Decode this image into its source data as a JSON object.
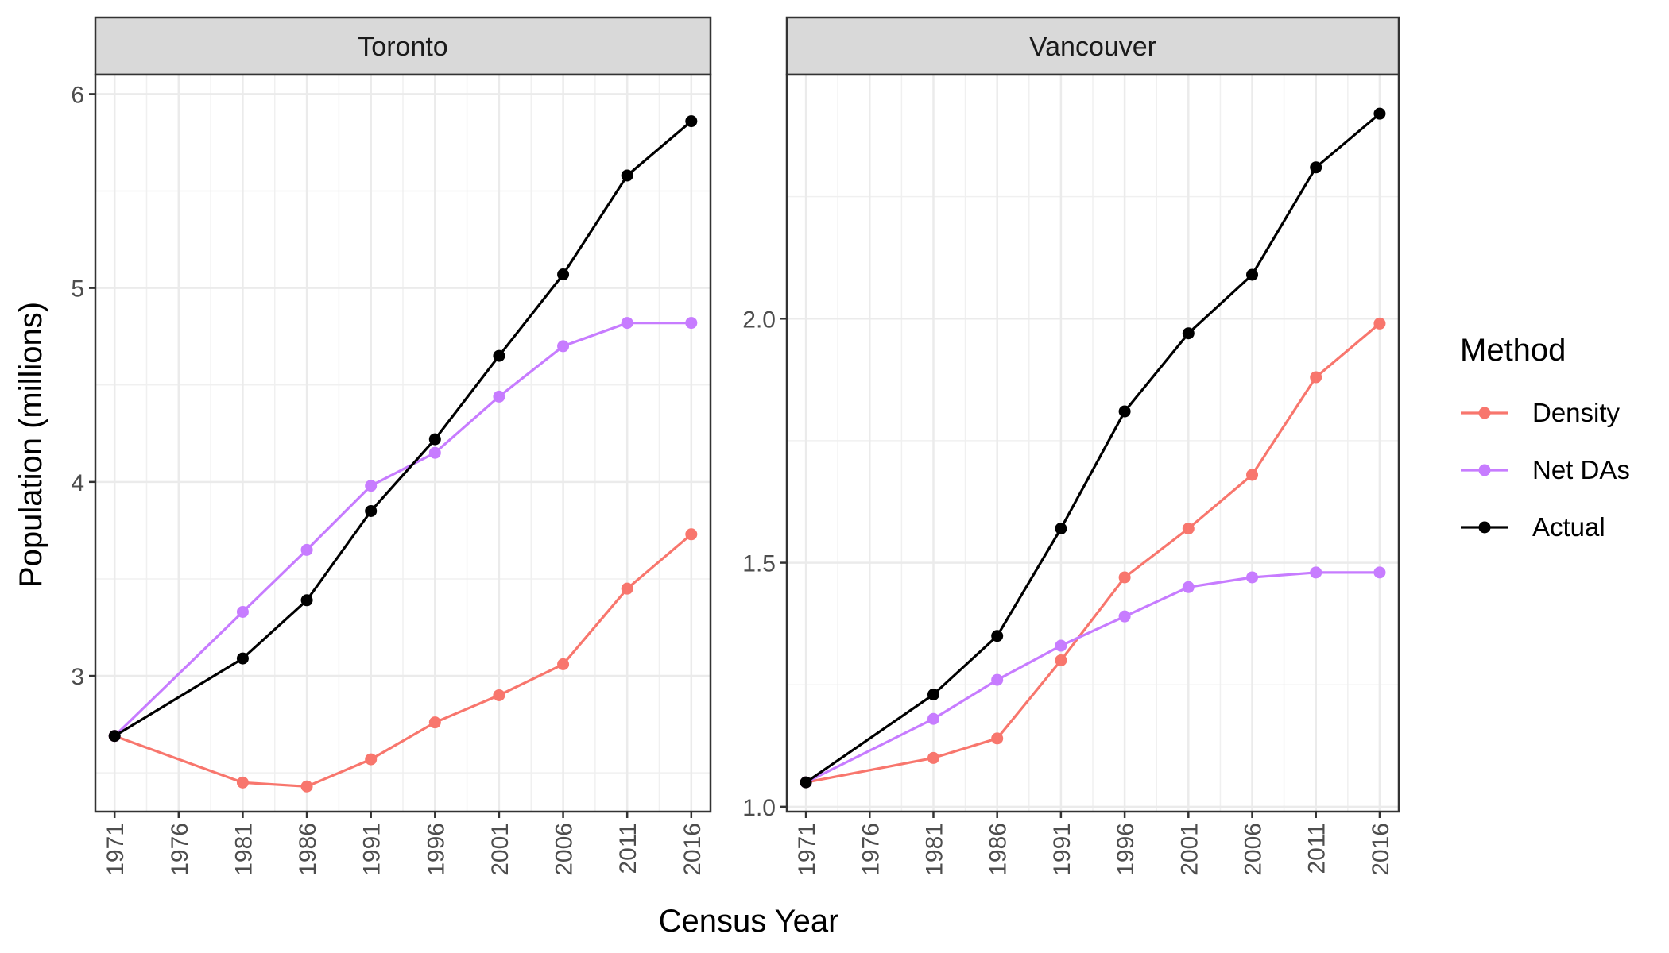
{
  "chart_data": {
    "type": "line",
    "facet_titles": [
      "Toronto",
      "Vancouver"
    ],
    "xlabel": "Census Year",
    "ylabel": "Population (millions)",
    "x": [
      1971,
      1981,
      1986,
      1991,
      1996,
      2001,
      2006,
      2011,
      2016
    ],
    "x_ticks": [
      "1971",
      "1976",
      "1981",
      "1986",
      "1991",
      "1996",
      "2001",
      "2006",
      "2011",
      "2016"
    ],
    "legend": {
      "title": "Method",
      "position": "right",
      "entries": [
        {
          "name": "Density",
          "color": "#F8766D"
        },
        {
          "name": "Net DAs",
          "color": "#C77CFF"
        },
        {
          "name": "Actual",
          "color": "#000000"
        }
      ]
    },
    "panels": [
      {
        "title": "Toronto",
        "ylim": [
          2.3,
          6.1
        ],
        "y_ticks": [
          3,
          4,
          5,
          6
        ],
        "y_tick_labels": [
          "3",
          "4",
          "5",
          "6"
        ],
        "series": [
          {
            "name": "Density",
            "color": "#F8766D",
            "values": [
              2.69,
              2.45,
              2.43,
              2.57,
              2.76,
              2.9,
              3.06,
              3.45,
              3.73
            ]
          },
          {
            "name": "Net DAs",
            "color": "#C77CFF",
            "values": [
              2.69,
              3.33,
              3.65,
              3.98,
              4.15,
              4.44,
              4.7,
              4.82,
              4.82
            ]
          },
          {
            "name": "Actual",
            "color": "#000000",
            "values": [
              2.69,
              3.09,
              3.39,
              3.85,
              4.22,
              4.65,
              5.07,
              5.58,
              5.86
            ]
          }
        ]
      },
      {
        "title": "Vancouver",
        "ylim": [
          0.99,
          2.5
        ],
        "y_ticks": [
          1.0,
          1.5,
          2.0
        ],
        "y_tick_labels": [
          "1.0",
          "1.5",
          "2.0"
        ],
        "series": [
          {
            "name": "Density",
            "color": "#F8766D",
            "values": [
              1.05,
              1.1,
              1.14,
              1.3,
              1.47,
              1.57,
              1.68,
              1.88,
              1.99
            ]
          },
          {
            "name": "Net DAs",
            "color": "#C77CFF",
            "values": [
              1.05,
              1.18,
              1.26,
              1.33,
              1.39,
              1.45,
              1.47,
              1.48,
              1.48
            ]
          },
          {
            "name": "Actual",
            "color": "#000000",
            "values": [
              1.05,
              1.23,
              1.35,
              1.57,
              1.81,
              1.97,
              2.09,
              2.31,
              2.42
            ]
          }
        ]
      }
    ]
  }
}
